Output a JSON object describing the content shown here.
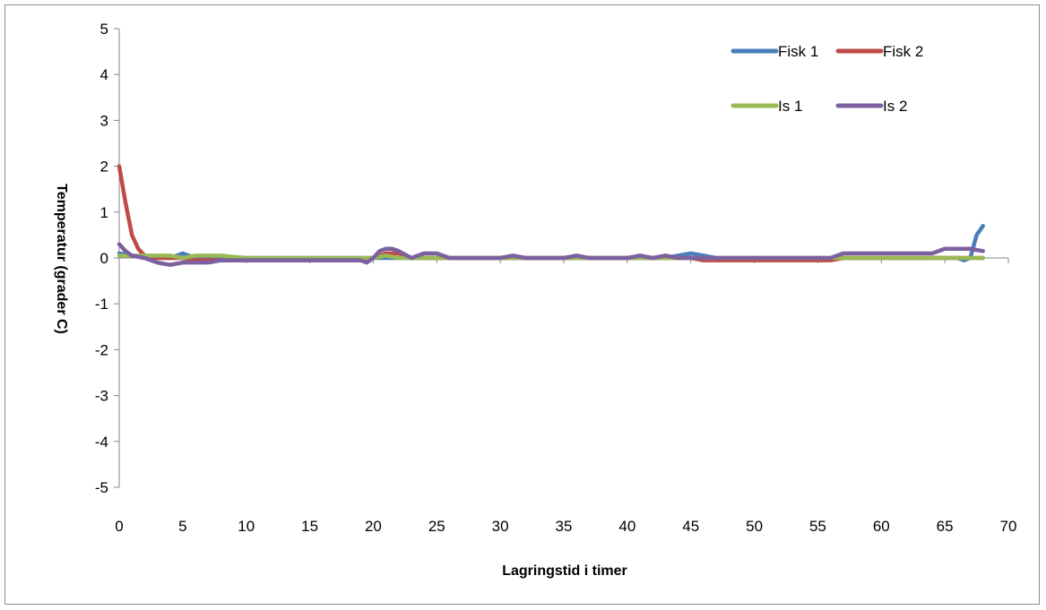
{
  "chart_data": {
    "type": "line",
    "title": "",
    "xlabel": "Lagringstid i timer",
    "ylabel": "Temperatur (grader C)",
    "xlim": [
      0,
      70
    ],
    "ylim": [
      -5,
      5
    ],
    "x_ticks": [
      0,
      5,
      10,
      15,
      20,
      25,
      30,
      35,
      40,
      45,
      50,
      55,
      60,
      65,
      70
    ],
    "y_ticks": [
      5,
      4,
      3,
      2,
      1,
      0,
      -1,
      -2,
      -3,
      -4,
      -5
    ],
    "grid": false,
    "legend_position": "top-right",
    "series": [
      {
        "name": "Fisk 1",
        "color": "#4a7ebb",
        "points": [
          [
            0,
            0.1
          ],
          [
            1,
            0.05
          ],
          [
            2,
            0.0
          ],
          [
            3,
            0.0
          ],
          [
            4,
            0.0
          ],
          [
            5,
            0.1
          ],
          [
            6,
            0.0
          ],
          [
            7,
            0.0
          ],
          [
            8,
            0.0
          ],
          [
            10,
            0.0
          ],
          [
            15,
            0.0
          ],
          [
            19,
            0.0
          ],
          [
            20,
            0.0
          ],
          [
            22,
            0.0
          ],
          [
            25,
            0.0
          ],
          [
            30,
            0.0
          ],
          [
            35,
            0.0
          ],
          [
            40,
            0.0
          ],
          [
            42,
            0.0
          ],
          [
            43,
            0.0
          ],
          [
            44,
            0.05
          ],
          [
            45,
            0.1
          ],
          [
            46,
            0.05
          ],
          [
            47,
            0.0
          ],
          [
            50,
            0.0
          ],
          [
            55,
            0.0
          ],
          [
            60,
            0.0
          ],
          [
            65,
            0.0
          ],
          [
            66,
            0.0
          ],
          [
            66.5,
            -0.05
          ],
          [
            67,
            0.0
          ],
          [
            67.5,
            0.5
          ],
          [
            68,
            0.7
          ]
        ]
      },
      {
        "name": "Fisk 2",
        "color": "#be4b48",
        "points": [
          [
            0,
            2.0
          ],
          [
            0.5,
            1.2
          ],
          [
            1,
            0.5
          ],
          [
            1.5,
            0.2
          ],
          [
            2,
            0.05
          ],
          [
            3,
            0.0
          ],
          [
            5,
            0.0
          ],
          [
            6,
            -0.05
          ],
          [
            7,
            -0.05
          ],
          [
            8,
            -0.05
          ],
          [
            10,
            -0.05
          ],
          [
            15,
            -0.05
          ],
          [
            19,
            -0.05
          ],
          [
            20,
            0.0
          ],
          [
            21,
            0.1
          ],
          [
            22,
            0.1
          ],
          [
            23,
            0.0
          ],
          [
            25,
            0.0
          ],
          [
            30,
            0.0
          ],
          [
            35,
            0.0
          ],
          [
            40,
            0.0
          ],
          [
            44,
            0.0
          ],
          [
            45,
            0.0
          ],
          [
            46,
            -0.05
          ],
          [
            50,
            -0.05
          ],
          [
            55,
            -0.05
          ],
          [
            56,
            -0.05
          ],
          [
            57,
            0.0
          ],
          [
            60,
            0.0
          ],
          [
            65,
            0.0
          ],
          [
            68,
            0.0
          ]
        ]
      },
      {
        "name": "Is 1",
        "color": "#98b954",
        "points": [
          [
            0,
            0.05
          ],
          [
            2,
            0.05
          ],
          [
            4,
            0.05
          ],
          [
            5,
            0.0
          ],
          [
            6,
            0.05
          ],
          [
            8,
            0.05
          ],
          [
            10,
            0.0
          ],
          [
            15,
            0.0
          ],
          [
            19,
            0.0
          ],
          [
            20,
            0.0
          ],
          [
            21,
            0.05
          ],
          [
            22,
            0.0
          ],
          [
            25,
            0.0
          ],
          [
            30,
            0.0
          ],
          [
            35,
            0.0
          ],
          [
            40,
            0.0
          ],
          [
            45,
            0.0
          ],
          [
            50,
            0.0
          ],
          [
            55,
            0.0
          ],
          [
            60,
            0.0
          ],
          [
            65,
            0.0
          ],
          [
            68,
            0.0
          ]
        ]
      },
      {
        "name": "Is 2",
        "color": "#7d60a0",
        "points": [
          [
            0,
            0.3
          ],
          [
            0.5,
            0.15
          ],
          [
            1,
            0.05
          ],
          [
            2,
            0.0
          ],
          [
            3,
            -0.1
          ],
          [
            4,
            -0.15
          ],
          [
            5,
            -0.1
          ],
          [
            6,
            -0.1
          ],
          [
            7,
            -0.1
          ],
          [
            8,
            -0.05
          ],
          [
            10,
            -0.05
          ],
          [
            15,
            -0.05
          ],
          [
            19,
            -0.05
          ],
          [
            19.5,
            -0.1
          ],
          [
            20,
            0.0
          ],
          [
            20.5,
            0.15
          ],
          [
            21,
            0.2
          ],
          [
            21.5,
            0.2
          ],
          [
            22,
            0.15
          ],
          [
            23,
            0.0
          ],
          [
            24,
            0.1
          ],
          [
            25,
            0.1
          ],
          [
            26,
            0.0
          ],
          [
            28,
            0.0
          ],
          [
            30,
            0.0
          ],
          [
            31,
            0.05
          ],
          [
            32,
            0.0
          ],
          [
            35,
            0.0
          ],
          [
            36,
            0.05
          ],
          [
            37,
            0.0
          ],
          [
            40,
            0.0
          ],
          [
            41,
            0.05
          ],
          [
            42,
            0.0
          ],
          [
            43,
            0.05
          ],
          [
            44,
            0.0
          ],
          [
            45,
            0.0
          ],
          [
            50,
            0.0
          ],
          [
            55,
            0.0
          ],
          [
            56,
            0.0
          ],
          [
            57,
            0.1
          ],
          [
            58,
            0.1
          ],
          [
            60,
            0.1
          ],
          [
            62,
            0.1
          ],
          [
            63,
            0.1
          ],
          [
            64,
            0.1
          ],
          [
            65,
            0.2
          ],
          [
            66,
            0.2
          ],
          [
            67,
            0.2
          ],
          [
            68,
            0.15
          ]
        ]
      }
    ]
  }
}
